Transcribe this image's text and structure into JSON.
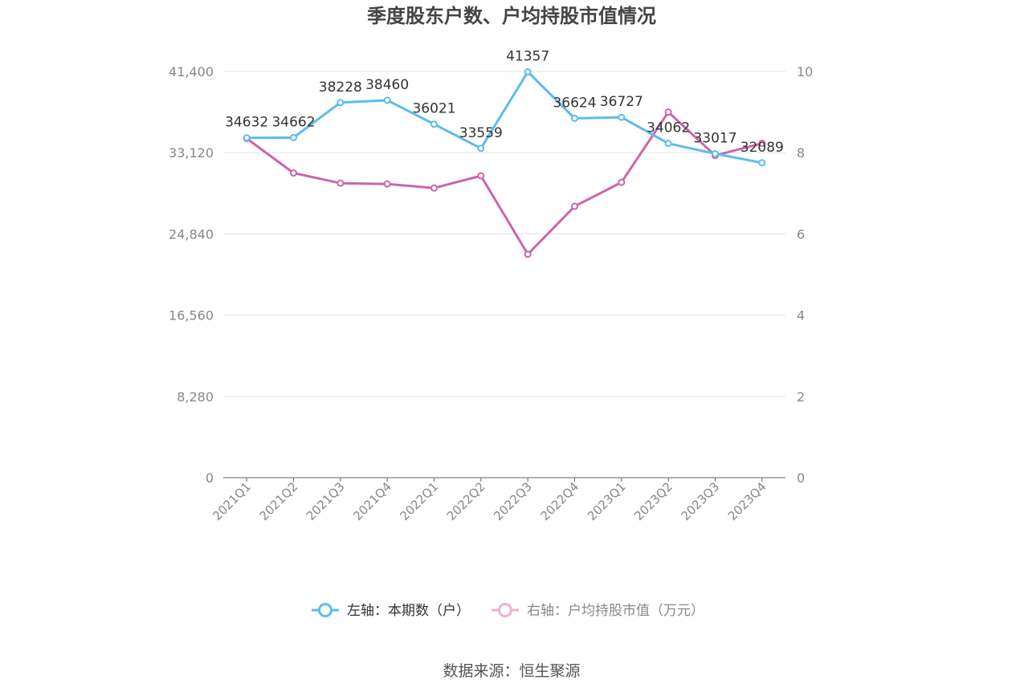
{
  "chart_data": {
    "type": "line",
    "title": "季度股东户数、户均持股市值情况",
    "categories": [
      "2021Q1",
      "2021Q2",
      "2021Q3",
      "2021Q4",
      "2022Q1",
      "2022Q2",
      "2022Q3",
      "2022Q4",
      "2023Q1",
      "2023Q2",
      "2023Q3",
      "2023Q4"
    ],
    "left_axis": {
      "ticks": [
        "0",
        "8,280",
        "16,560",
        "24,840",
        "33,120",
        "41,400"
      ],
      "ylim": [
        0,
        41400
      ]
    },
    "right_axis": {
      "ticks": [
        "0",
        "2",
        "4",
        "6",
        "8",
        "10"
      ],
      "ylim": [
        0,
        10
      ]
    },
    "grid": true,
    "legend_position": "bottom",
    "series": [
      {
        "name": "左轴：本期数（户）",
        "axis": "left",
        "color": "#5bbdee",
        "values": [
          34632,
          34662,
          38228,
          38460,
          36021,
          33559,
          41357,
          36624,
          36727,
          34062,
          33017,
          32089
        ],
        "labels": [
          "34632",
          "34662",
          "38228",
          "38460",
          "36021",
          "33559",
          "41357",
          "36624",
          "36727",
          "34062",
          "33017",
          "32089"
        ]
      },
      {
        "name": "右轴：户均持股市值（万元）",
        "axis": "right",
        "color": "#cc66aa",
        "values": [
          8.35,
          7.5,
          7.25,
          7.23,
          7.13,
          7.43,
          5.5,
          6.68,
          7.27,
          9.0,
          7.93,
          8.23
        ]
      }
    ],
    "source": "数据来源：恒生聚源"
  }
}
